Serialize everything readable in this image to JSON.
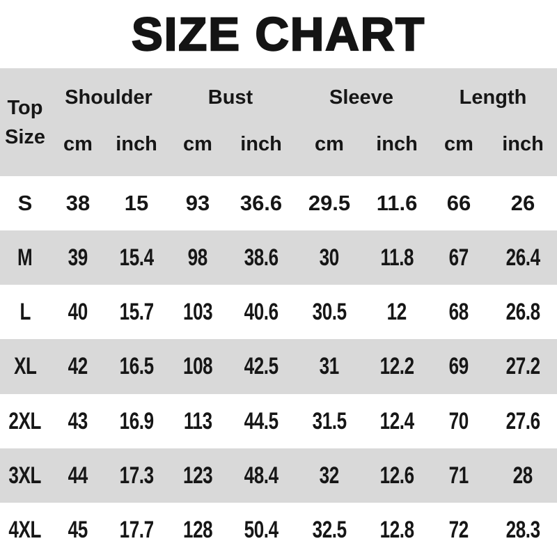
{
  "title": "SIZE CHART",
  "colors": {
    "background": "#ffffff",
    "stripe_gray": "#d9d9d9",
    "text": "#161616"
  },
  "table": {
    "corner": {
      "line1": "Top",
      "line2": "Size"
    },
    "groups": [
      {
        "label": "Shoulder"
      },
      {
        "label": "Bust"
      },
      {
        "label": "Sleeve"
      },
      {
        "label": "Length"
      }
    ],
    "units": [
      "cm",
      "inch",
      "cm",
      "inch",
      "cm",
      "inch",
      "cm",
      "inch"
    ],
    "rows": [
      {
        "size": "S",
        "values": [
          "38",
          "15",
          "93",
          "36.6",
          "29.5",
          "11.6",
          "66",
          "26"
        ]
      },
      {
        "size": "M",
        "values": [
          "39",
          "15.4",
          "98",
          "38.6",
          "30",
          "11.8",
          "67",
          "26.4"
        ]
      },
      {
        "size": "L",
        "values": [
          "40",
          "15.7",
          "103",
          "40.6",
          "30.5",
          "12",
          "68",
          "26.8"
        ]
      },
      {
        "size": "XL",
        "values": [
          "42",
          "16.5",
          "108",
          "42.5",
          "31",
          "12.2",
          "69",
          "27.2"
        ]
      },
      {
        "size": "2XL",
        "values": [
          "43",
          "16.9",
          "113",
          "44.5",
          "31.5",
          "12.4",
          "70",
          "27.6"
        ]
      },
      {
        "size": "3XL",
        "values": [
          "44",
          "17.3",
          "123",
          "48.4",
          "32",
          "12.6",
          "71",
          "28"
        ]
      },
      {
        "size": "4XL",
        "values": [
          "45",
          "17.7",
          "128",
          "50.4",
          "32.5",
          "12.8",
          "72",
          "28.3"
        ]
      }
    ]
  },
  "chart_data": {
    "type": "table",
    "title": "SIZE CHART",
    "columns": [
      "Top Size",
      "Shoulder cm",
      "Shoulder inch",
      "Bust cm",
      "Bust inch",
      "Sleeve cm",
      "Sleeve inch",
      "Length cm",
      "Length inch"
    ],
    "rows": [
      [
        "S",
        38,
        15,
        93,
        36.6,
        29.5,
        11.6,
        66,
        26
      ],
      [
        "M",
        39,
        15.4,
        98,
        38.6,
        30,
        11.8,
        67,
        26.4
      ],
      [
        "L",
        40,
        15.7,
        103,
        40.6,
        30.5,
        12,
        68,
        26.8
      ],
      [
        "XL",
        42,
        16.5,
        108,
        42.5,
        31,
        12.2,
        69,
        27.2
      ],
      [
        "2XL",
        43,
        16.9,
        113,
        44.5,
        31.5,
        12.4,
        70,
        27.6
      ],
      [
        "3XL",
        44,
        17.3,
        123,
        48.4,
        32,
        12.6,
        71,
        28
      ],
      [
        "4XL",
        45,
        17.7,
        128,
        50.4,
        32.5,
        12.8,
        72,
        28.3
      ]
    ],
    "layout": {
      "striped": true,
      "stripe_color": "#d9d9d9",
      "header_background": "#d9d9d9"
    }
  }
}
